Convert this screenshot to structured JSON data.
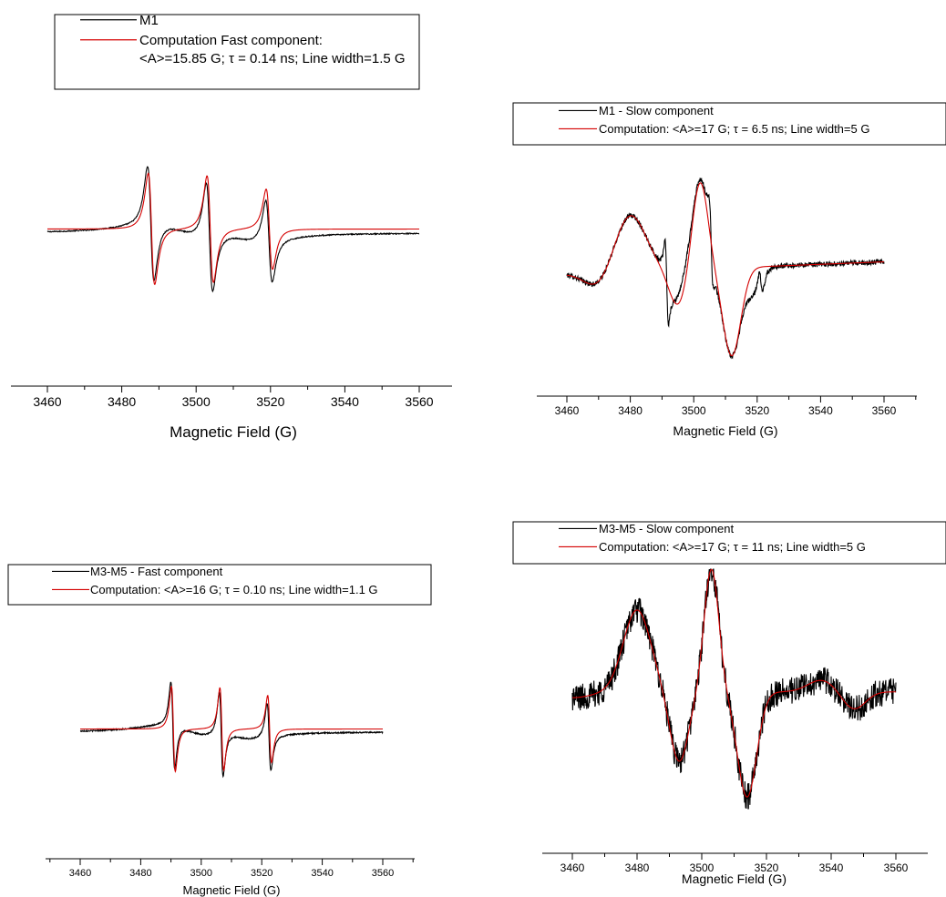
{
  "colors": {
    "experimental": "#000000",
    "computation": "#d40000"
  },
  "chart_data": [
    {
      "id": "m1-fast",
      "type": "line",
      "xlabel": "Magnetic Field (G)",
      "ylabel": "",
      "xlim": [
        3460,
        3560
      ],
      "xticks": [
        3460,
        3480,
        3500,
        3520,
        3540,
        3560
      ],
      "ylim": [
        -1.05,
        1.05
      ],
      "legend_placement": "top-left",
      "legend": [
        {
          "lines": [
            "M1"
          ],
          "color": "#000000"
        },
        {
          "lines": [
            "Computation Fast component:",
            "<A>=15.85 G; τ = 0.14 ns; Line width=1.5 G"
          ],
          "color": "#d40000"
        }
      ],
      "series": [
        {
          "name": "M1",
          "color": "#000000",
          "kind": "three_line",
          "centers": [
            3487.8,
            3503.6,
            3519.6
          ],
          "amps": [
            1.0,
            0.95,
            0.72
          ],
          "width": 1.5,
          "wings": true,
          "noise": 0.004
        },
        {
          "name": "Computation Fast component",
          "color": "#d40000",
          "kind": "three_line",
          "centers": [
            3488.0,
            3503.8,
            3519.7
          ],
          "amps": [
            0.97,
            0.93,
            0.7
          ],
          "width": 1.5,
          "wings": false,
          "noise": 0
        }
      ]
    },
    {
      "id": "m1-slow",
      "type": "line",
      "xlabel": "Magnetic Field (G)",
      "ylabel": "",
      "xlim": [
        3460,
        3560
      ],
      "xticks": [
        3460,
        3480,
        3500,
        3520,
        3540,
        3560
      ],
      "ylim": [
        -1.0,
        1.05
      ],
      "legend_placement": "top",
      "legend": [
        {
          "lines": [
            "M1 - Slow component"
          ],
          "color": "#000000"
        },
        {
          "lines": [
            "Computation: <A>=17 G; τ = 6.5 ns; Line width=5 G"
          ],
          "color": "#d40000"
        }
      ],
      "series": [
        {
          "name": "M1 - Slow component",
          "color": "#000000",
          "kind": "slow_exp_m1",
          "noise": 0.025
        },
        {
          "name": "Computation",
          "color": "#d40000",
          "kind": "slow_sim_m1",
          "noise": 0
        }
      ]
    },
    {
      "id": "m3m5-fast",
      "type": "line",
      "xlabel": "Magnetic Field (G)",
      "ylabel": "",
      "xlim": [
        3460,
        3560
      ],
      "xticks": [
        3460,
        3480,
        3500,
        3520,
        3540,
        3560
      ],
      "ylim": [
        -1.05,
        1.05
      ],
      "legend_placement": "top-left",
      "legend": [
        {
          "lines": [
            "M3-M5 - Fast component"
          ],
          "color": "#000000"
        },
        {
          "lines": [
            "Computation: <A>=16 G; τ = 0.10 ns; Line width=1.1 G"
          ],
          "color": "#d40000"
        }
      ],
      "series": [
        {
          "name": "M3-M5 - Fast component",
          "color": "#000000",
          "kind": "three_line",
          "centers": [
            3490.6,
            3506.6,
            3522.4
          ],
          "amps": [
            1.0,
            0.97,
            0.78
          ],
          "width": 1.1,
          "wings": true,
          "noise": 0.006
        },
        {
          "name": "Computation",
          "color": "#d40000",
          "kind": "three_line",
          "centers": [
            3490.8,
            3506.8,
            3522.6
          ],
          "amps": [
            0.99,
            0.96,
            0.78
          ],
          "width": 1.1,
          "wings": false,
          "noise": 0
        }
      ]
    },
    {
      "id": "m3m5-slow",
      "type": "line",
      "xlabel": "Magnetic Field (G)",
      "ylabel": "",
      "xlim": [
        3460,
        3560
      ],
      "xticks": [
        3460,
        3480,
        3500,
        3520,
        3540,
        3560
      ],
      "ylim": [
        -1.0,
        1.05
      ],
      "legend_placement": "top",
      "legend": [
        {
          "lines": [
            "M3-M5 - Slow component"
          ],
          "color": "#000000"
        },
        {
          "lines": [
            "Computation: <A>=17 G; τ = 11 ns; Line width=5 G"
          ],
          "color": "#d40000"
        }
      ],
      "series": [
        {
          "name": "M3-M5 - Slow component",
          "color": "#000000",
          "kind": "slow_exp_m35",
          "noise": 0.12
        },
        {
          "name": "Computation",
          "color": "#d40000",
          "kind": "slow_sim_m35",
          "noise": 0
        }
      ]
    }
  ]
}
